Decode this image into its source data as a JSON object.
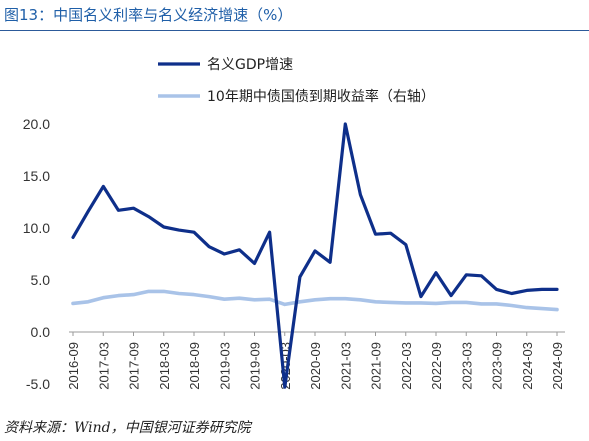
{
  "title": "图13：中国名义利率与名义经济增速（%）",
  "source": "资料来源：Wind，中国银河证券研究院",
  "colors": {
    "series1": "#0e2f8a",
    "series2": "#a9c3e8",
    "title": "#1f5fa8"
  },
  "chart_data": {
    "type": "line",
    "legend_position": "top",
    "grid": false,
    "ylim": [
      -5,
      20
    ],
    "yticks": [
      "20.0",
      "15.0",
      "10.0",
      "5.0",
      "0.0",
      "-5.0"
    ],
    "ytick_values": [
      20,
      15,
      10,
      5,
      0,
      -5
    ],
    "x": [
      "2016-09",
      "2016-12",
      "2017-03",
      "2017-06",
      "2017-09",
      "2017-12",
      "2018-03",
      "2018-06",
      "2018-09",
      "2018-12",
      "2019-03",
      "2019-06",
      "2019-09",
      "2019-12",
      "2020-03",
      "2020-06",
      "2020-09",
      "2020-12",
      "2021-03",
      "2021-06",
      "2021-09",
      "2021-12",
      "2022-03",
      "2022-06",
      "2022-09",
      "2022-12",
      "2023-03",
      "2023-06",
      "2023-09",
      "2023-12",
      "2024-03",
      "2024-06",
      "2024-09"
    ],
    "xtick_labels": [
      "2016-09",
      "2017-03",
      "2017-09",
      "2018-03",
      "2018-09",
      "2019-03",
      "2019-09",
      "2020-03",
      "2020-09",
      "2021-03",
      "2021-09",
      "2022-03",
      "2022-09",
      "2023-03",
      "2023-09",
      "2024-03",
      "2024-09"
    ],
    "series": [
      {
        "name": "名义GDP增速",
        "axis": "left",
        "values": [
          9.1,
          11.6,
          14.0,
          11.7,
          11.9,
          11.1,
          10.1,
          9.8,
          9.6,
          8.2,
          7.5,
          7.9,
          6.6,
          9.6,
          -5.3,
          5.3,
          7.8,
          6.7,
          20.0,
          13.2,
          9.4,
          9.5,
          8.4,
          3.4,
          5.7,
          3.5,
          5.5,
          5.4,
          4.1,
          3.7,
          4.0,
          4.1,
          4.1
        ]
      },
      {
        "name": "10年期中债国债到期收益率（右轴）",
        "axis": "right",
        "values": [
          2.75,
          2.9,
          3.3,
          3.5,
          3.6,
          3.9,
          3.9,
          3.7,
          3.6,
          3.4,
          3.15,
          3.25,
          3.1,
          3.15,
          2.65,
          2.9,
          3.1,
          3.2,
          3.2,
          3.1,
          2.9,
          2.85,
          2.8,
          2.8,
          2.75,
          2.85,
          2.85,
          2.7,
          2.7,
          2.55,
          2.35,
          2.25,
          2.15
        ]
      }
    ]
  }
}
